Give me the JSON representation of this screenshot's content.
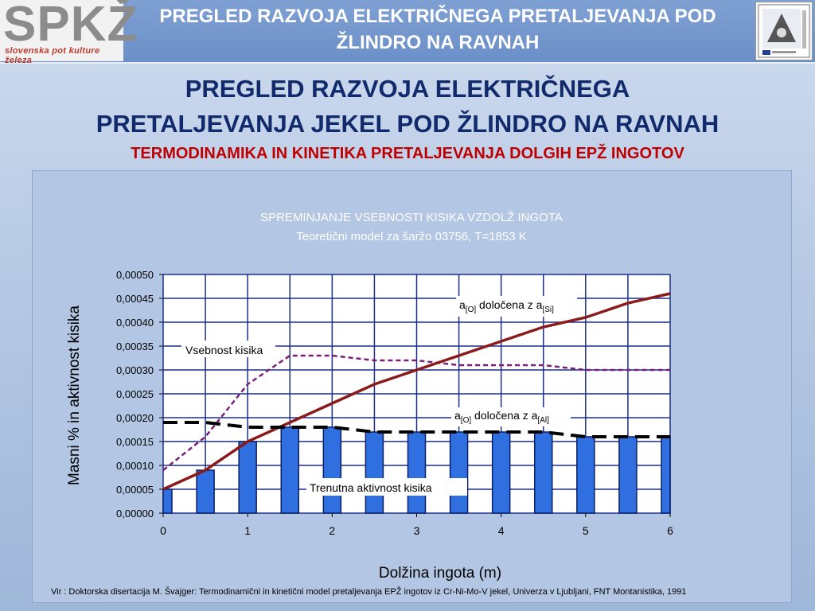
{
  "header": {
    "logo_text": "SPKŽ",
    "logo_subtitle": "slovenska pot kulture železa",
    "title_line1": "PREGLED RAZVOJA ELEKTRIČNEGA PRETALJEVANJA POD",
    "title_line2": "ŽLINDRO NA RAVNAH"
  },
  "slide": {
    "title_line1": "PREGLED RAZVOJA ELEKTRIČNEGA",
    "title_line2": "PRETALJEVANJA JEKEL POD ŽLINDRO NA RAVNAH",
    "subtitle": "TERMODINAMIKA IN KINETIKA PRETALJEVANJA DOLGIH EPŽ INGOTOV"
  },
  "chart_data": {
    "type": "bar",
    "title": "SPREMINJANJE VSEBNOSTI KISIKA VZDOLŽ INGOTA",
    "subtitle": "Teoretični model za šaržo 03756, T=1853 K",
    "xlabel": "Dolžina ingota (m)",
    "ylabel": "Masni % in aktivnost kisika",
    "xlim": [
      0,
      6
    ],
    "ylim": [
      0,
      0.0005
    ],
    "x_ticks": [
      "0",
      "1",
      "2",
      "3",
      "4",
      "5",
      "6"
    ],
    "y_ticks": [
      "0,00000",
      "0,00005",
      "0,00010",
      "0,00015",
      "0,00020",
      "0,00025",
      "0,00030",
      "0,00035",
      "0,00040",
      "0,00045",
      "0,00050"
    ],
    "grid": true,
    "bars": {
      "name": "Trenutna aktivnost kisika",
      "x": [
        0,
        0.5,
        1,
        1.5,
        2,
        2.5,
        3,
        3.5,
        4,
        4.5,
        5,
        5.5,
        6
      ],
      "values": [
        5e-05,
        9e-05,
        0.00015,
        0.00018,
        0.00018,
        0.00017,
        0.00017,
        0.00017,
        0.00017,
        0.00017,
        0.00016,
        0.00016,
        0.00016
      ],
      "color": "#2f6fe0"
    },
    "series": [
      {
        "name": "Vsebnost kisika",
        "style": "dashed",
        "color": "#7b1e7a",
        "x": [
          0,
          0.5,
          1,
          1.5,
          2,
          2.5,
          3,
          3.5,
          4,
          4.5,
          5,
          5.5,
          6
        ],
        "values": [
          9e-05,
          0.00016,
          0.00027,
          0.00033,
          0.00033,
          0.00032,
          0.00032,
          0.00031,
          0.00031,
          0.00031,
          0.0003,
          0.0003,
          0.0003
        ]
      },
      {
        "name": "a[O] določena z a[Si]",
        "style": "solid",
        "color": "#8b1a1a",
        "x": [
          0,
          0.5,
          1,
          1.5,
          2,
          2.5,
          3,
          3.5,
          4,
          4.5,
          5,
          5.5,
          6
        ],
        "values": [
          5e-05,
          9e-05,
          0.00015,
          0.00019,
          0.00023,
          0.00027,
          0.0003,
          0.00033,
          0.00036,
          0.00039,
          0.00041,
          0.00044,
          0.00046
        ]
      },
      {
        "name": "a[O] določena z a[Al]",
        "style": "dashed",
        "color": "#000000",
        "x": [
          0,
          0.5,
          1,
          1.5,
          2,
          2.5,
          3,
          3.5,
          4,
          4.5,
          5,
          5.5,
          6
        ],
        "values": [
          0.00019,
          0.00019,
          0.00018,
          0.00018,
          0.00018,
          0.00017,
          0.00017,
          0.00017,
          0.00017,
          0.00017,
          0.00016,
          0.00016,
          0.00016
        ]
      }
    ],
    "annotations": {
      "vsebnost": "Vsebnost kisika",
      "aktivnost": "Trenutna aktivnost kisika",
      "si_main": "a",
      "si_sub1": "[O]",
      "si_mid": " določena z a",
      "si_sub2": "[Si]",
      "al_main": "a",
      "al_sub1": "[O]",
      "al_mid": " določena z a",
      "al_sub2": "[Al]"
    }
  },
  "source": "Vir : Doktorska disertacija M. Švajger: Termodinamični in kinetični model pretaljevanja EPŽ ingotov iz Cr-Ni-Mo-V jekel, Univerza v Ljubljani, FNT Montanistika, 1991",
  "colors": {
    "header_bg": "#6b8fc8",
    "title": "#112a6b",
    "subtitle": "#c00000",
    "plot_bg": "#ffffff",
    "grid": "#1a2f8c"
  }
}
